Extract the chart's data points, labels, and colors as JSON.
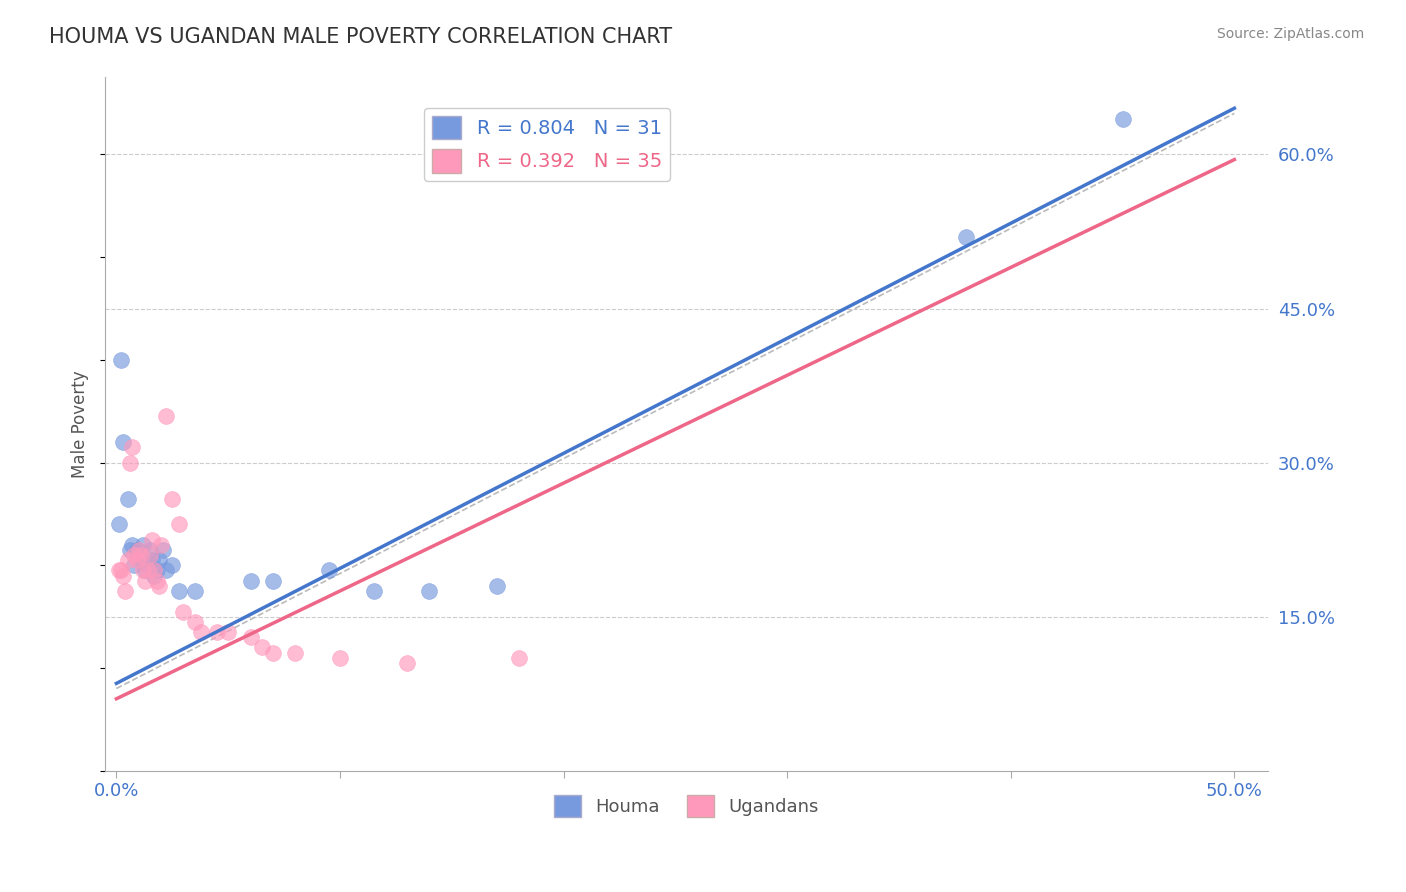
{
  "title": "HOUMA VS UGANDAN MALE POVERTY CORRELATION CHART",
  "source": "Source: ZipAtlas.com",
  "ylabel": "Male Poverty",
  "xlim": [
    -0.005,
    0.515
  ],
  "ylim": [
    0.0,
    0.675
  ],
  "xticks": [
    0.0,
    0.1,
    0.2,
    0.3,
    0.4,
    0.5
  ],
  "xtick_labels_show": [
    "0.0%",
    "50.0%"
  ],
  "xtick_show_positions": [
    0.0,
    0.5
  ],
  "ytick_labels_right": [
    "15.0%",
    "30.0%",
    "45.0%",
    "60.0%"
  ],
  "ytick_values_right": [
    0.15,
    0.3,
    0.45,
    0.6
  ],
  "houma_color": "#7799dd",
  "ugandan_color": "#ff99bb",
  "houma_R": 0.804,
  "houma_N": 31,
  "ugandan_R": 0.392,
  "ugandan_N": 35,
  "houma_points": [
    [
      0.001,
      0.24
    ],
    [
      0.002,
      0.4
    ],
    [
      0.003,
      0.32
    ],
    [
      0.005,
      0.265
    ],
    [
      0.006,
      0.215
    ],
    [
      0.007,
      0.22
    ],
    [
      0.008,
      0.2
    ],
    [
      0.009,
      0.215
    ],
    [
      0.01,
      0.21
    ],
    [
      0.011,
      0.205
    ],
    [
      0.012,
      0.22
    ],
    [
      0.013,
      0.195
    ],
    [
      0.014,
      0.2
    ],
    [
      0.015,
      0.215
    ],
    [
      0.016,
      0.205
    ],
    [
      0.017,
      0.19
    ],
    [
      0.018,
      0.195
    ],
    [
      0.019,
      0.205
    ],
    [
      0.021,
      0.215
    ],
    [
      0.022,
      0.195
    ],
    [
      0.025,
      0.2
    ],
    [
      0.028,
      0.175
    ],
    [
      0.035,
      0.175
    ],
    [
      0.06,
      0.185
    ],
    [
      0.07,
      0.185
    ],
    [
      0.095,
      0.195
    ],
    [
      0.115,
      0.175
    ],
    [
      0.14,
      0.175
    ],
    [
      0.17,
      0.18
    ],
    [
      0.38,
      0.52
    ],
    [
      0.45,
      0.635
    ]
  ],
  "ugandan_points": [
    [
      0.001,
      0.195
    ],
    [
      0.002,
      0.195
    ],
    [
      0.003,
      0.19
    ],
    [
      0.004,
      0.175
    ],
    [
      0.005,
      0.205
    ],
    [
      0.006,
      0.3
    ],
    [
      0.007,
      0.315
    ],
    [
      0.008,
      0.21
    ],
    [
      0.009,
      0.205
    ],
    [
      0.01,
      0.215
    ],
    [
      0.011,
      0.21
    ],
    [
      0.012,
      0.195
    ],
    [
      0.013,
      0.185
    ],
    [
      0.014,
      0.195
    ],
    [
      0.015,
      0.21
    ],
    [
      0.016,
      0.225
    ],
    [
      0.017,
      0.195
    ],
    [
      0.018,
      0.185
    ],
    [
      0.019,
      0.18
    ],
    [
      0.02,
      0.22
    ],
    [
      0.022,
      0.345
    ],
    [
      0.025,
      0.265
    ],
    [
      0.028,
      0.24
    ],
    [
      0.03,
      0.155
    ],
    [
      0.035,
      0.145
    ],
    [
      0.038,
      0.135
    ],
    [
      0.045,
      0.135
    ],
    [
      0.05,
      0.135
    ],
    [
      0.06,
      0.13
    ],
    [
      0.065,
      0.12
    ],
    [
      0.07,
      0.115
    ],
    [
      0.08,
      0.115
    ],
    [
      0.1,
      0.11
    ],
    [
      0.13,
      0.105
    ],
    [
      0.18,
      0.11
    ]
  ],
  "houma_line_color": "#4477cc",
  "ugandan_line_color": "#ee6688",
  "ref_line_color": "#bbbbbb",
  "grid_color": "#cccccc",
  "title_color": "#333333",
  "axis_label_color": "#4477cc",
  "background_color": "#ffffff",
  "houma_line": [
    0.0,
    0.085,
    0.5,
    0.645
  ],
  "ugandan_line": [
    0.0,
    0.07,
    0.5,
    0.595
  ],
  "ref_line": [
    0.0,
    0.08,
    0.5,
    0.64
  ]
}
